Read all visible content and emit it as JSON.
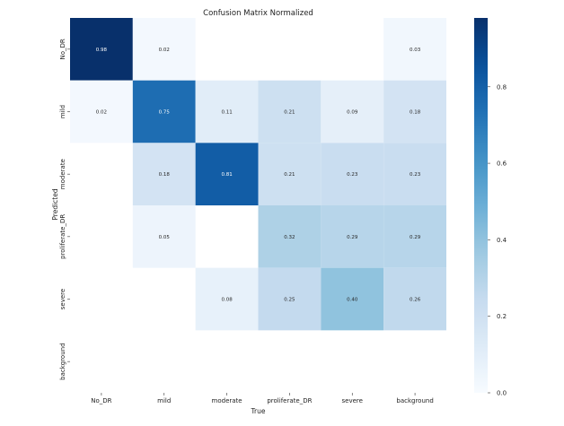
{
  "chart_data": {
    "type": "heatmap",
    "title": "Confusion Matrix Normalized",
    "xlabel": "True",
    "ylabel": "Predicted",
    "x_categories": [
      "No_DR",
      "mild",
      "moderate",
      "proliferate_DR",
      "severe",
      "background"
    ],
    "y_categories": [
      "No_DR",
      "mild",
      "moderate",
      "proliferate_DR",
      "severe",
      "background"
    ],
    "values": [
      [
        0.98,
        0.02,
        null,
        null,
        null,
        0.03
      ],
      [
        0.02,
        0.75,
        0.11,
        0.21,
        0.09,
        0.18
      ],
      [
        null,
        0.18,
        0.81,
        0.21,
        0.23,
        0.23
      ],
      [
        null,
        0.05,
        null,
        0.32,
        0.29,
        0.29
      ],
      [
        null,
        null,
        0.08,
        0.25,
        0.4,
        0.26
      ],
      [
        null,
        null,
        null,
        null,
        null,
        null
      ]
    ],
    "value_labels": [
      [
        "0.98",
        "0.02",
        "",
        "",
        "",
        "0.03"
      ],
      [
        "0.02",
        "0.75",
        "0.11",
        "0.21",
        "0.09",
        "0.18"
      ],
      [
        "",
        "0.18",
        "0.81",
        "0.21",
        "0.23",
        "0.23"
      ],
      [
        "",
        "0.05",
        "",
        "0.32",
        "0.29",
        "0.29"
      ],
      [
        "",
        "",
        "0.08",
        "0.25",
        "0.40",
        "0.26"
      ],
      [
        "",
        "",
        "",
        "",
        "",
        ""
      ]
    ],
    "colormap": "Blues",
    "colorbar": {
      "vmin": 0.0,
      "vmax": 0.98,
      "ticks": [
        0.0,
        0.2,
        0.4,
        0.6,
        0.8
      ],
      "tick_labels": [
        "0.0",
        "0.2",
        "0.4",
        "0.6",
        "0.8"
      ]
    },
    "grid": false
  }
}
